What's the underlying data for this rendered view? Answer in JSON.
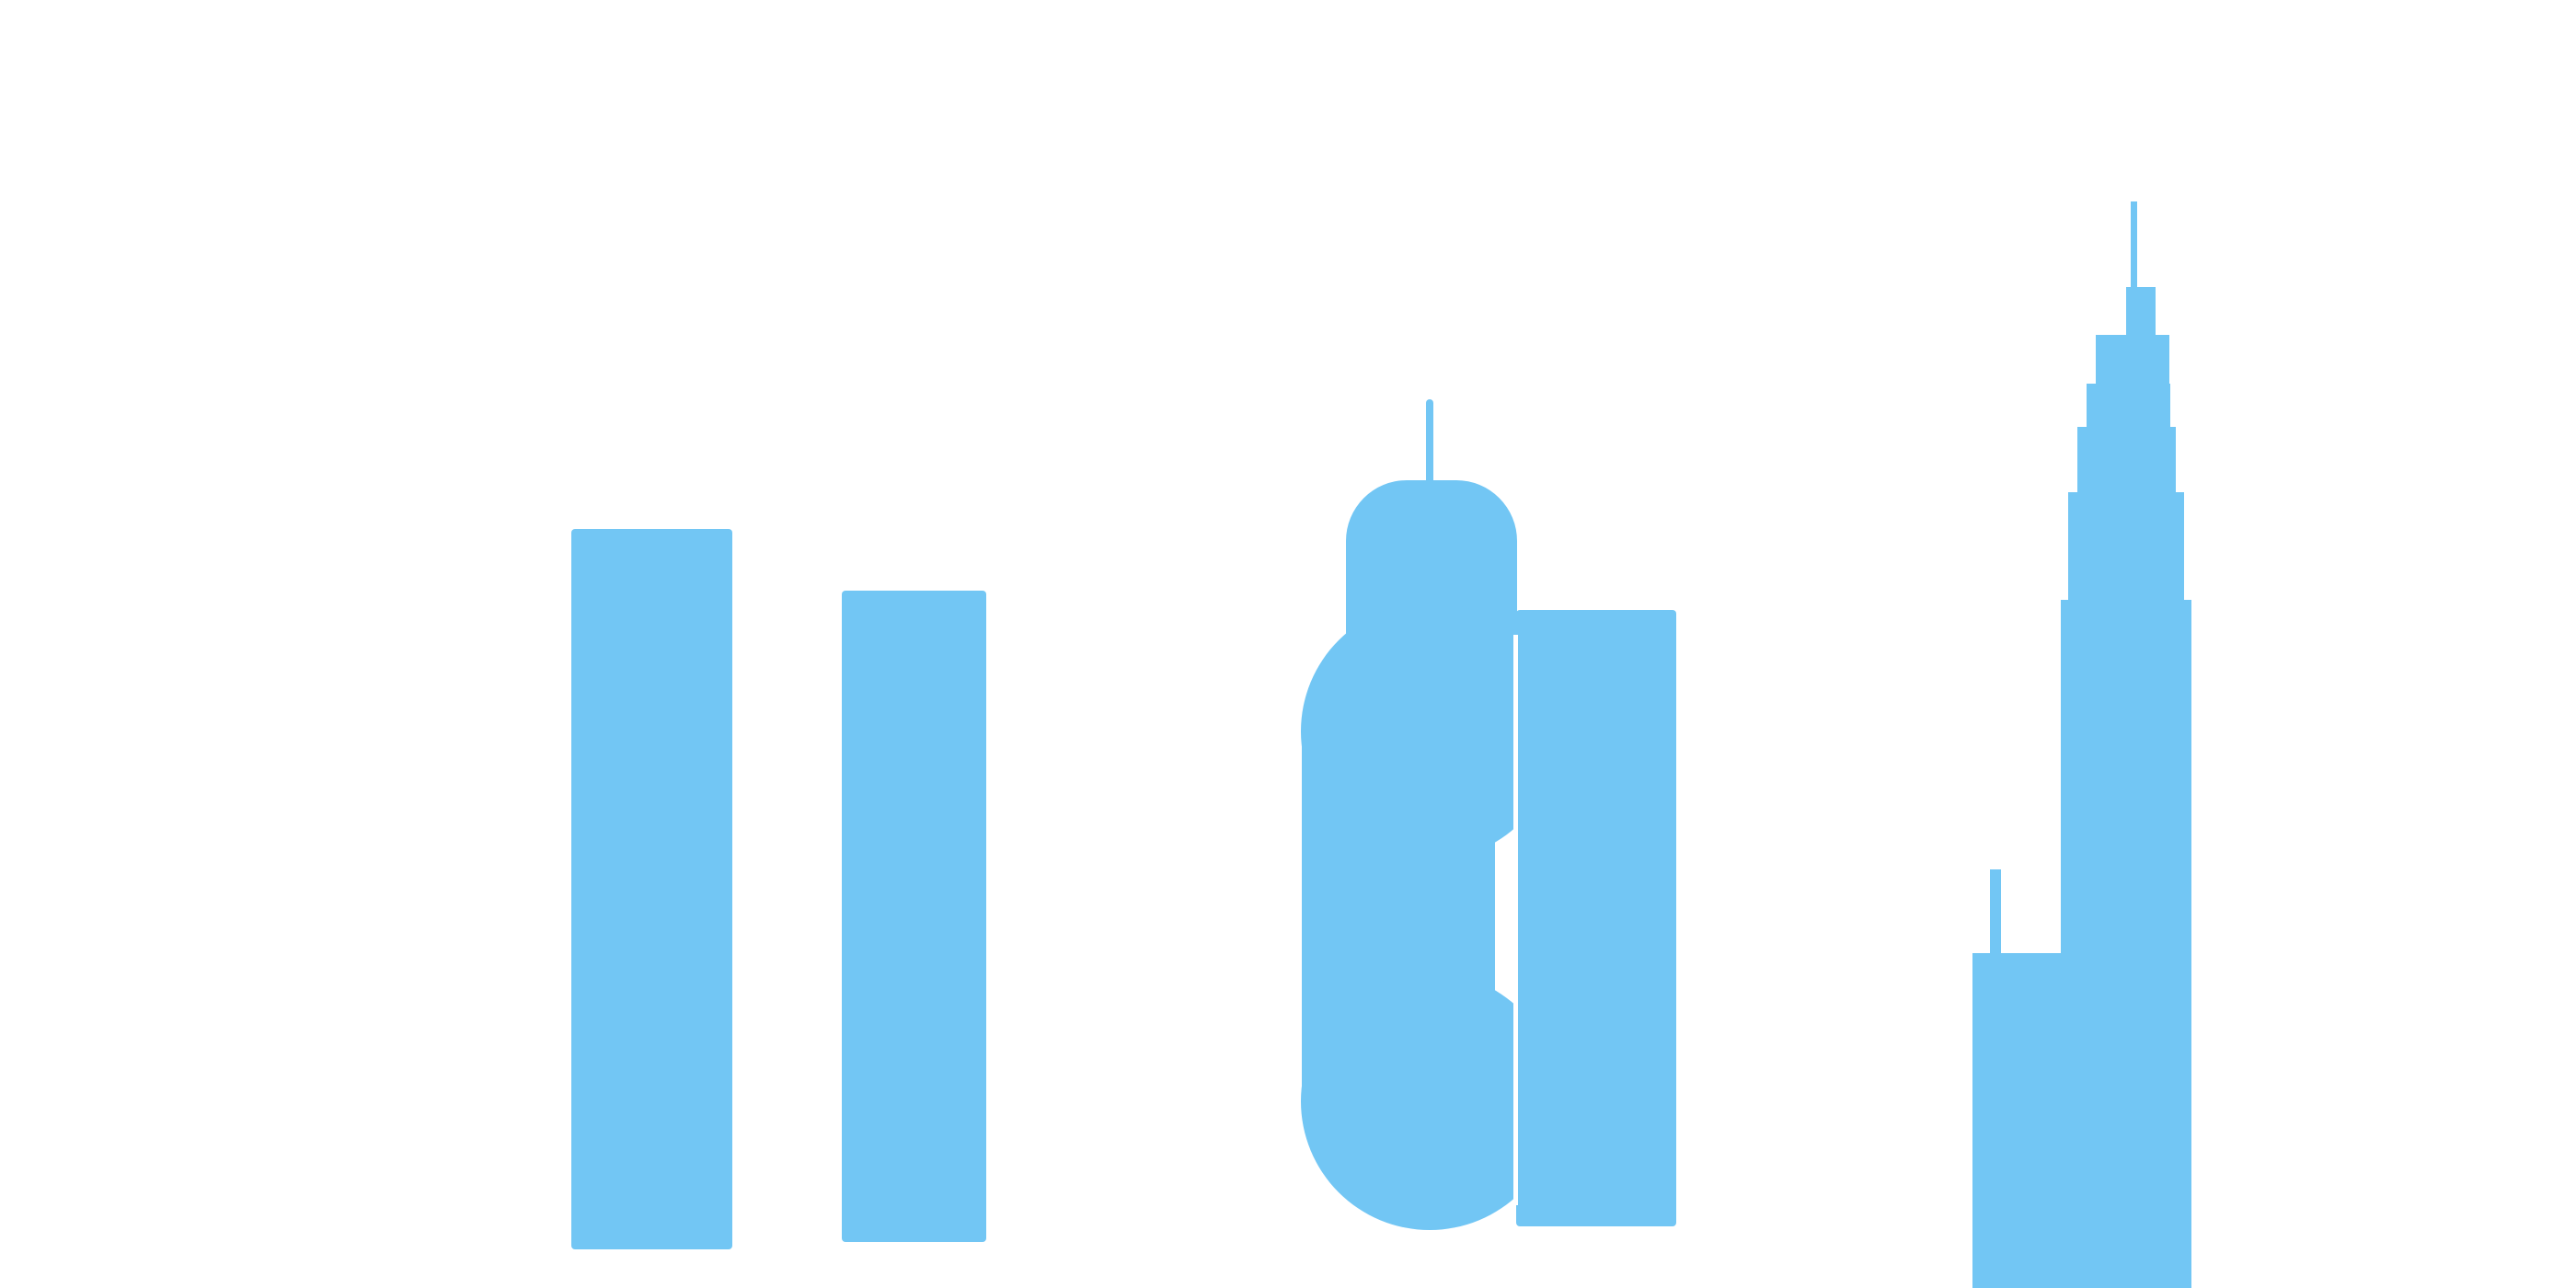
{
  "colors": {
    "background": "#ffffff",
    "building_fill": "#72c6f4",
    "gap": "#ffffff"
  },
  "icons": [
    "tower-left-icon",
    "tower-second-icon",
    "rounded-skyscraper-icon",
    "tower-right-icon",
    "stepped-spire-skyscraper-icon"
  ]
}
